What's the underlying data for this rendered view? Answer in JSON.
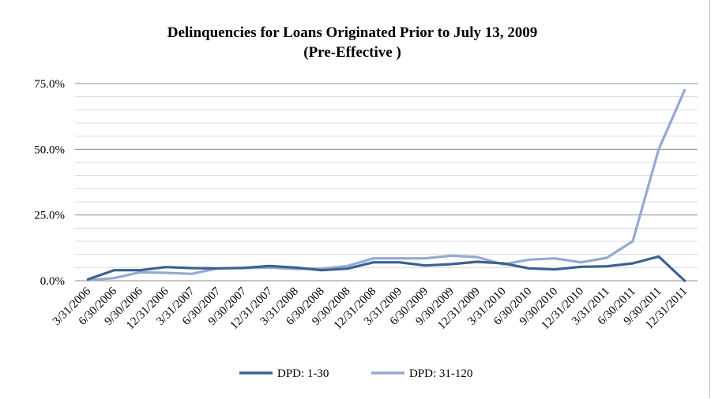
{
  "chart_data": {
    "type": "line",
    "title": "Delinquencies for Loans Originated Prior to July 13, 2009",
    "subtitle": "(Pre-Effective )",
    "xlabel": "",
    "ylabel": "",
    "ylim": [
      0,
      75
    ],
    "y_ticks": [
      "0.0%",
      "25.0%",
      "50.0%",
      "75.0%"
    ],
    "y_minor_step": 5,
    "grid": true,
    "legend_position": "bottom",
    "categories": [
      "3/31/2006",
      "6/30/2006",
      "9/30/2006",
      "12/31/2006",
      "3/31/2007",
      "6/30/2007",
      "9/30/2007",
      "12/31/2007",
      "3/31/2008",
      "6/30/2008",
      "9/30/2008",
      "12/31/2008",
      "3/31/2009",
      "6/30/2009",
      "9/30/2009",
      "12/31/2009",
      "3/31/2010",
      "6/30/2010",
      "9/30/2010",
      "12/31/2010",
      "3/31/2011",
      "6/30/2011",
      "9/30/2011",
      "12/31/2011"
    ],
    "series": [
      {
        "name": "DPD: 1-30",
        "color": "#3b6190",
        "values": [
          0.5,
          4.0,
          4.0,
          5.2,
          4.8,
          4.7,
          4.9,
          5.6,
          5.0,
          4.0,
          4.6,
          7.0,
          7.0,
          5.8,
          6.3,
          7.2,
          6.6,
          4.7,
          4.3,
          5.3,
          5.5,
          6.6,
          9.2,
          0.0
        ]
      },
      {
        "name": "DPD: 31-120",
        "color": "#94aad0",
        "values": [
          0.2,
          1.0,
          3.2,
          3.0,
          2.6,
          4.7,
          4.8,
          5.0,
          4.5,
          4.6,
          5.6,
          8.5,
          8.5,
          8.5,
          9.5,
          9.0,
          6.2,
          8.0,
          8.5,
          7.0,
          8.7,
          15.0,
          50.0,
          72.5
        ]
      }
    ]
  }
}
